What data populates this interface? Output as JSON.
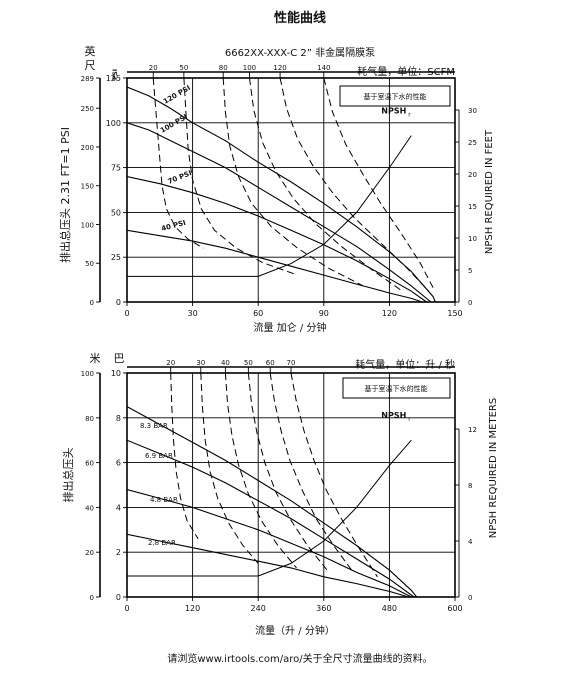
{
  "page_title": "性能曲线",
  "footer_text": "请浏览www.irtools.com/aro/关于全尺寸流量曲线的资料。",
  "chart_data": [
    {
      "type": "line",
      "title": "6662XX-XXX-C 2” 非金属隔膜泵",
      "note": "基于室温下水的性能",
      "left_unit_labels": [
        "英",
        "尺"
      ],
      "psi_label": "PSI",
      "ylabel": "排出总压头 2.31 FT=1 PSI",
      "xlabel": "流量 加仑 / 分钟",
      "top_label": "耗气量，单位：SCFM",
      "right_label": "NPSH REQUIRED IN FEET",
      "npsh_label": "NPSH",
      "npsh_sub": "r",
      "xlim": [
        0,
        150
      ],
      "x_ticks": [
        0,
        30,
        60,
        90,
        120,
        150
      ],
      "ylim": [
        0,
        125
      ],
      "y_ticks": [
        0,
        25,
        50,
        75,
        100,
        125
      ],
      "ft_ticks": [
        0,
        50,
        100,
        150,
        200,
        250,
        289
      ],
      "right_ticks": [
        0,
        5,
        10,
        15,
        20,
        25,
        30
      ],
      "right_lim": [
        0,
        35
      ],
      "top_ticks": [
        20,
        50,
        80,
        100,
        120,
        140
      ],
      "series": [
        {
          "name": "120 PSI",
          "x": [
            0,
            10,
            20,
            30,
            45,
            60,
            75,
            90,
            105,
            120,
            130,
            140,
            141
          ],
          "y": [
            120,
            115,
            108,
            100,
            90,
            78,
            67,
            55,
            42,
            28,
            17,
            3,
            0
          ]
        },
        {
          "name": "100 PSI",
          "x": [
            0,
            10,
            20,
            30,
            45,
            60,
            75,
            90,
            105,
            120,
            130,
            139
          ],
          "y": [
            100,
            96,
            90,
            84,
            75,
            64,
            53,
            42,
            31,
            18,
            9,
            0
          ]
        },
        {
          "name": "70 PSI",
          "x": [
            0,
            15,
            30,
            45,
            60,
            75,
            90,
            105,
            120,
            130,
            137
          ],
          "y": [
            70,
            66,
            61,
            55,
            48,
            40,
            32,
            23,
            13,
            6,
            0
          ]
        },
        {
          "name": "40 PSI",
          "x": [
            0,
            15,
            30,
            45,
            60,
            75,
            90,
            105,
            120,
            130,
            135
          ],
          "y": [
            40,
            37,
            34,
            30,
            25,
            20,
            15,
            10,
            5,
            2,
            0
          ]
        }
      ],
      "air_curves": [
        {
          "scfm": 20,
          "x": [
            12,
            13,
            14,
            15,
            16,
            18,
            22,
            28,
            35
          ],
          "y": [
            125,
            110,
            95,
            80,
            65,
            52,
            42,
            35,
            30
          ]
        },
        {
          "scfm": 50,
          "x": [
            26,
            27,
            28,
            30,
            34,
            40,
            50,
            62,
            78
          ],
          "y": [
            125,
            105,
            85,
            68,
            52,
            40,
            30,
            22,
            15
          ]
        },
        {
          "scfm": 80,
          "x": [
            44,
            45,
            47,
            51,
            57,
            66,
            78,
            92,
            108
          ],
          "y": [
            125,
            106,
            87,
            70,
            55,
            42,
            30,
            19,
            9
          ]
        },
        {
          "scfm": 100,
          "x": [
            56,
            58,
            62,
            68,
            76,
            86,
            98,
            112,
            126
          ],
          "y": [
            125,
            107,
            89,
            73,
            58,
            44,
            31,
            18,
            6
          ]
        },
        {
          "scfm": 120,
          "x": [
            70,
            73,
            78,
            85,
            94,
            104,
            116,
            128,
            138
          ],
          "y": [
            125,
            108,
            91,
            76,
            61,
            47,
            33,
            19,
            6
          ]
        },
        {
          "scfm": 140,
          "x": [
            90,
            94,
            100,
            108,
            116,
            125,
            134,
            140
          ],
          "y": [
            125,
            106,
            88,
            71,
            55,
            39,
            22,
            8
          ]
        }
      ],
      "npsh_curve": {
        "x": [
          0,
          60,
          75,
          90,
          105,
          120,
          130
        ],
        "y": [
          4,
          4,
          6,
          9,
          14,
          21,
          26
        ]
      }
    },
    {
      "type": "line",
      "title": "",
      "note": "基于室温下水的性能",
      "left_unit_labels": [
        "米",
        "巴"
      ],
      "ylabel": "排出总压头",
      "xlabel": "流量（升 / 分钟）",
      "top_label": "耗气量，单位：升 / 秒",
      "right_label": "NPSH REQUIRED IN METERS",
      "npsh_label": "NPSH",
      "npsh_sub": "r",
      "xlim": [
        0,
        600
      ],
      "x_ticks": [
        0,
        120,
        240,
        360,
        480,
        600
      ],
      "ylim": [
        0,
        10
      ],
      "y_ticks": [
        0,
        2,
        4,
        6,
        8,
        10
      ],
      "m_ticks": [
        0,
        20,
        40,
        60,
        80,
        100
      ],
      "right_ticks": [
        0,
        4,
        8,
        12
      ],
      "right_lim": [
        0,
        16
      ],
      "top_ticks": [
        20,
        30,
        40,
        50,
        60,
        70
      ],
      "series": [
        {
          "name": "8.3 BAR",
          "x": [
            0,
            60,
            120,
            180,
            240,
            300,
            360,
            420,
            480,
            520,
            530
          ],
          "y": [
            8.5,
            7.7,
            6.9,
            6.1,
            5.2,
            4.3,
            3.3,
            2.3,
            1.2,
            0.3,
            0
          ]
        },
        {
          "name": "6.9 BAR",
          "x": [
            0,
            60,
            120,
            180,
            240,
            300,
            360,
            420,
            480,
            525
          ],
          "y": [
            7.0,
            6.4,
            5.8,
            5.1,
            4.3,
            3.5,
            2.6,
            1.7,
            0.8,
            0
          ]
        },
        {
          "name": "4.8 BAR",
          "x": [
            0,
            60,
            120,
            180,
            240,
            300,
            360,
            420,
            480,
            520
          ],
          "y": [
            4.8,
            4.4,
            4.0,
            3.5,
            3.0,
            2.4,
            1.8,
            1.1,
            0.5,
            0
          ]
        },
        {
          "name": "2.8 BAR",
          "x": [
            0,
            60,
            120,
            180,
            240,
            300,
            360,
            420,
            480,
            515
          ],
          "y": [
            2.8,
            2.5,
            2.2,
            1.9,
            1.6,
            1.3,
            0.9,
            0.6,
            0.25,
            0
          ]
        }
      ],
      "air_curves": [
        {
          "scfm": 20,
          "x": [
            80,
            82,
            85,
            90,
            98,
            110,
            130
          ],
          "y": [
            10,
            8.5,
            7.0,
            5.6,
            4.4,
            3.4,
            2.6
          ]
        },
        {
          "scfm": 30,
          "x": [
            135,
            138,
            143,
            152,
            166,
            186,
            212,
            240
          ],
          "y": [
            10,
            8.5,
            7.0,
            5.6,
            4.4,
            3.3,
            2.3,
            1.5
          ]
        },
        {
          "scfm": 40,
          "x": [
            180,
            184,
            192,
            204,
            222,
            246,
            276,
            310
          ],
          "y": [
            10,
            8.6,
            7.2,
            5.9,
            4.6,
            3.4,
            2.3,
            1.3
          ]
        },
        {
          "scfm": 50,
          "x": [
            222,
            228,
            238,
            252,
            272,
            298,
            330,
            366
          ],
          "y": [
            10,
            8.6,
            7.3,
            6.0,
            4.7,
            3.5,
            2.3,
            1.2
          ]
        },
        {
          "scfm": 60,
          "x": [
            262,
            270,
            282,
            298,
            320,
            346,
            378,
            414
          ],
          "y": [
            10,
            8.7,
            7.4,
            6.1,
            4.8,
            3.5,
            2.3,
            1.1
          ]
        },
        {
          "scfm": 70,
          "x": [
            300,
            310,
            324,
            342,
            364,
            392,
            424,
            458
          ],
          "y": [
            10,
            8.7,
            7.4,
            6.1,
            4.8,
            3.5,
            2.2,
            0.9
          ]
        }
      ],
      "npsh_curve": {
        "x": [
          0,
          240,
          300,
          360,
          420,
          480,
          520
        ],
        "y": [
          1.5,
          1.5,
          2.4,
          4.0,
          6.4,
          9.4,
          11.2
        ]
      }
    }
  ]
}
